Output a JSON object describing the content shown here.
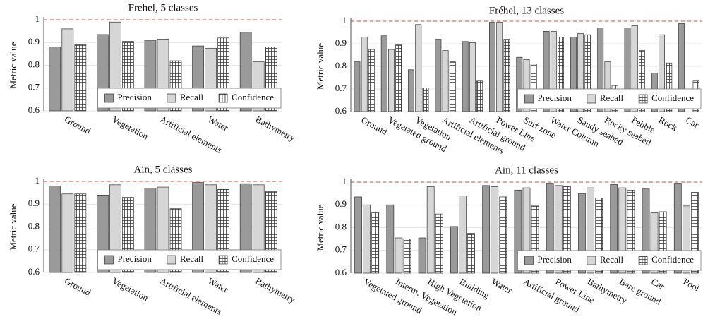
{
  "chart_data": [
    {
      "type": "bar",
      "title": "Fréhel, 5 classes",
      "ylabel": "Metric value",
      "categories": [
        "Ground",
        "Vegetation",
        "Artificial elements",
        "Water",
        "Bathymetry"
      ],
      "series": [
        {
          "name": "Precision",
          "color": "#9a9a9a",
          "values": [
            0.88,
            0.935,
            0.91,
            0.885,
            0.945
          ]
        },
        {
          "name": "Recall",
          "color": "#d6d6d6",
          "values": [
            0.96,
            0.99,
            0.915,
            0.875,
            0.815
          ]
        },
        {
          "name": "Confidence",
          "color": "#ffffff",
          "hatch": true,
          "values": [
            0.89,
            0.905,
            0.82,
            0.92,
            0.88
          ]
        }
      ],
      "ylim": [
        0.6,
        1.0
      ],
      "yticks": [
        0.6,
        0.7,
        0.8,
        0.9,
        1
      ],
      "grid": true,
      "ref_line": 1,
      "ref_color": "#e07050",
      "legend": "lower right"
    },
    {
      "type": "bar",
      "title": "Fréhel, 13 classes",
      "ylabel": "Metric value",
      "categories": [
        "Ground",
        "Vegetated ground",
        "Vegetation",
        "Artificial elements",
        "Artificial ground",
        "Power Line",
        "Surf zone",
        "Water Column",
        "Sandy seabed",
        "Rocky seabed",
        "Pebble",
        "Rock",
        "Car"
      ],
      "series": [
        {
          "name": "Precision",
          "color": "#9a9a9a",
          "values": [
            0.82,
            0.935,
            0.785,
            0.92,
            0.91,
            0.995,
            0.84,
            0.955,
            0.93,
            0.97,
            0.97,
            0.77,
            0.99
          ]
        },
        {
          "name": "Recall",
          "color": "#d6d6d6",
          "values": [
            0.93,
            0.875,
            0.985,
            0.87,
            0.905,
            0.995,
            0.83,
            0.955,
            0.945,
            0.82,
            0.98,
            0.94,
            null
          ]
        },
        {
          "name": "Confidence",
          "color": "#ffffff",
          "hatch": true,
          "values": [
            0.875,
            0.895,
            0.705,
            0.82,
            0.735,
            0.92,
            0.81,
            0.93,
            0.94,
            0.715,
            0.87,
            0.815,
            0.735
          ]
        }
      ],
      "ylim": [
        0.6,
        1.0
      ],
      "yticks": [
        0.6,
        0.7,
        0.8,
        0.9,
        1
      ],
      "grid": true,
      "ref_line": 1,
      "ref_color": "#e07050",
      "legend": "lower right"
    },
    {
      "type": "bar",
      "title": "Ain, 5 classes",
      "ylabel": "Metric value",
      "categories": [
        "Ground",
        "Vegetation",
        "Artificial elements",
        "Water",
        "Bathymetry"
      ],
      "series": [
        {
          "name": "Precision",
          "color": "#9a9a9a",
          "values": [
            0.98,
            0.94,
            0.97,
            0.995,
            0.99
          ]
        },
        {
          "name": "Recall",
          "color": "#d6d6d6",
          "values": [
            0.945,
            0.985,
            0.975,
            0.985,
            0.985
          ]
        },
        {
          "name": "Confidence",
          "color": "#ffffff",
          "hatch": true,
          "values": [
            0.945,
            0.93,
            0.88,
            0.965,
            0.955
          ]
        }
      ],
      "ylim": [
        0.6,
        1.0
      ],
      "yticks": [
        0.6,
        0.7,
        0.8,
        0.9,
        1
      ],
      "grid": true,
      "ref_line": 1,
      "ref_color": "#e07050",
      "legend": "lower right"
    },
    {
      "type": "bar",
      "title": "Ain, 11 classes",
      "ylabel": "Metric value",
      "categories": [
        "Vegetated ground",
        "Interm. Vegetation",
        "High Vegetation",
        "Building",
        "Water",
        "Artificial ground",
        "Power Line",
        "Bathymetry",
        "Bare ground",
        "Car",
        "Pool"
      ],
      "series": [
        {
          "name": "Precision",
          "color": "#9a9a9a",
          "values": [
            0.935,
            0.9,
            0.755,
            0.805,
            0.985,
            0.965,
            0.995,
            0.95,
            0.99,
            0.97,
            0.995
          ]
        },
        {
          "name": "Recall",
          "color": "#d6d6d6",
          "values": [
            0.9,
            0.755,
            0.98,
            0.94,
            0.98,
            0.975,
            0.985,
            0.975,
            0.975,
            0.865,
            0.895
          ]
        },
        {
          "name": "Confidence",
          "color": "#ffffff",
          "hatch": true,
          "values": [
            0.865,
            0.75,
            0.86,
            0.775,
            0.935,
            0.895,
            0.98,
            0.93,
            0.965,
            0.87,
            0.955
          ]
        }
      ],
      "ylim": [
        0.6,
        1.0
      ],
      "yticks": [
        0.6,
        0.7,
        0.8,
        0.9,
        1
      ],
      "grid": true,
      "ref_line": 1,
      "ref_color": "#e07050",
      "legend": "lower right"
    }
  ]
}
